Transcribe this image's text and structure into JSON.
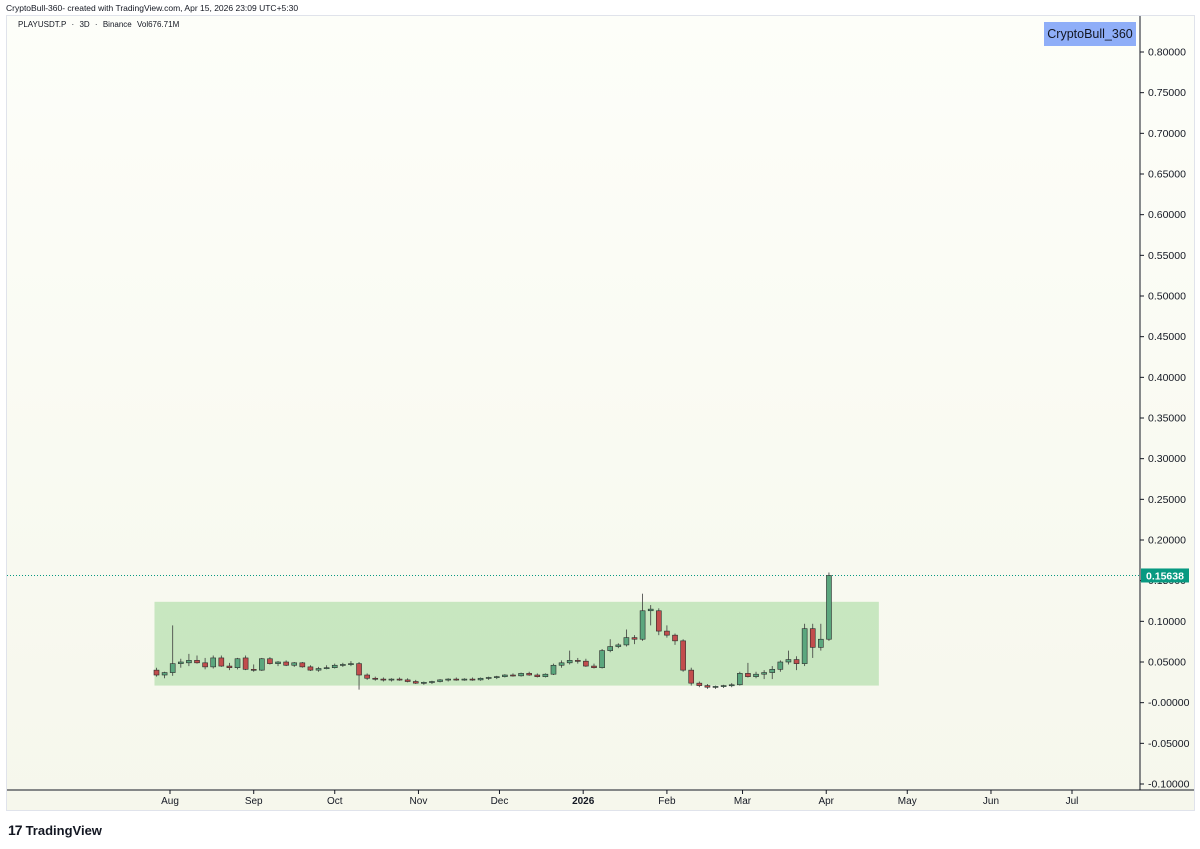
{
  "header": {
    "caption": "CryptoBull-360- created with TradingView.com, Apr 15, 2026 23:09 UTC+5:30"
  },
  "symbol": {
    "ticker": "PLAYUSDT.P",
    "timeframe": "3D",
    "exchange": "Binance",
    "volume": "Vol676.71M",
    "separator": "·"
  },
  "badge": {
    "text": "CryptoBull_360",
    "color": "#8faef8"
  },
  "footer": {
    "logo_glyph": "17",
    "brand": "TradingView"
  },
  "chart_data": {
    "type": "candlestick",
    "title": "",
    "y_axis": {
      "min": -0.1,
      "max": 0.8,
      "step": 0.05,
      "tick_labels": [
        "0.80000",
        "0.75000",
        "0.70000",
        "0.65000",
        "0.60000",
        "0.55000",
        "0.50000",
        "0.45000",
        "0.40000",
        "0.35000",
        "0.30000",
        "0.25000",
        "0.20000",
        "0.15000",
        "0.10000",
        "0.05000",
        "-0.00000",
        "-0.05000",
        "-0.10000"
      ]
    },
    "x_axis": {
      "labels": [
        {
          "text": "Aug",
          "date": "2025-08-01",
          "bold": false
        },
        {
          "text": "Sep",
          "date": "2025-09-01",
          "bold": false
        },
        {
          "text": "Oct",
          "date": "2025-10-01",
          "bold": false
        },
        {
          "text": "Nov",
          "date": "2025-11-01",
          "bold": false
        },
        {
          "text": "Dec",
          "date": "2025-12-01",
          "bold": false
        },
        {
          "text": "2026",
          "date": "2026-01-01",
          "bold": true
        },
        {
          "text": "Feb",
          "date": "2026-02-01",
          "bold": false
        },
        {
          "text": "Mar",
          "date": "2026-03-01",
          "bold": false
        },
        {
          "text": "Apr",
          "date": "2026-04-01",
          "bold": false
        },
        {
          "text": "May",
          "date": "2026-05-01",
          "bold": false
        },
        {
          "text": "Jun",
          "date": "2026-06-01",
          "bold": false
        },
        {
          "text": "Jul",
          "date": "2026-07-01",
          "bold": false
        }
      ]
    },
    "last_price": {
      "label": "0.15638",
      "value": 0.15638,
      "color": "#089981"
    },
    "range_box": {
      "start": "2025-07-27",
      "end": "2026-04-19",
      "top": 0.124,
      "bottom": 0.021,
      "color": "#b8e0b0"
    },
    "up_color": "#5ba77e",
    "down_color": "#c24d4d",
    "candles": [
      {
        "date": "2025-07-27",
        "o": 0.04,
        "h": 0.043,
        "l": 0.032,
        "c": 0.034
      },
      {
        "date": "2025-07-30",
        "o": 0.034,
        "h": 0.038,
        "l": 0.03,
        "c": 0.037
      },
      {
        "date": "2025-08-02",
        "o": 0.037,
        "h": 0.095,
        "l": 0.033,
        "c": 0.048
      },
      {
        "date": "2025-08-05",
        "o": 0.048,
        "h": 0.054,
        "l": 0.043,
        "c": 0.05
      },
      {
        "date": "2025-08-08",
        "o": 0.049,
        "h": 0.06,
        "l": 0.045,
        "c": 0.052
      },
      {
        "date": "2025-08-11",
        "o": 0.052,
        "h": 0.058,
        "l": 0.048,
        "c": 0.049
      },
      {
        "date": "2025-08-14",
        "o": 0.049,
        "h": 0.055,
        "l": 0.041,
        "c": 0.044
      },
      {
        "date": "2025-08-17",
        "o": 0.044,
        "h": 0.058,
        "l": 0.042,
        "c": 0.055
      },
      {
        "date": "2025-08-20",
        "o": 0.055,
        "h": 0.058,
        "l": 0.044,
        "c": 0.045
      },
      {
        "date": "2025-08-23",
        "o": 0.045,
        "h": 0.049,
        "l": 0.04,
        "c": 0.043
      },
      {
        "date": "2025-08-26",
        "o": 0.043,
        "h": 0.055,
        "l": 0.041,
        "c": 0.054
      },
      {
        "date": "2025-08-29",
        "o": 0.055,
        "h": 0.058,
        "l": 0.04,
        "c": 0.041
      },
      {
        "date": "2025-09-01",
        "o": 0.041,
        "h": 0.047,
        "l": 0.038,
        "c": 0.04
      },
      {
        "date": "2025-09-04",
        "o": 0.04,
        "h": 0.055,
        "l": 0.039,
        "c": 0.054
      },
      {
        "date": "2025-09-07",
        "o": 0.054,
        "h": 0.056,
        "l": 0.047,
        "c": 0.048
      },
      {
        "date": "2025-09-10",
        "o": 0.048,
        "h": 0.051,
        "l": 0.045,
        "c": 0.05
      },
      {
        "date": "2025-09-13",
        "o": 0.05,
        "h": 0.052,
        "l": 0.045,
        "c": 0.046
      },
      {
        "date": "2025-09-16",
        "o": 0.046,
        "h": 0.05,
        "l": 0.044,
        "c": 0.049
      },
      {
        "date": "2025-09-19",
        "o": 0.049,
        "h": 0.05,
        "l": 0.043,
        "c": 0.044
      },
      {
        "date": "2025-09-22",
        "o": 0.044,
        "h": 0.046,
        "l": 0.039,
        "c": 0.04
      },
      {
        "date": "2025-09-25",
        "o": 0.04,
        "h": 0.044,
        "l": 0.038,
        "c": 0.042
      },
      {
        "date": "2025-09-28",
        "o": 0.042,
        "h": 0.046,
        "l": 0.041,
        "c": 0.043
      },
      {
        "date": "2025-10-01",
        "o": 0.043,
        "h": 0.048,
        "l": 0.042,
        "c": 0.046
      },
      {
        "date": "2025-10-04",
        "o": 0.046,
        "h": 0.049,
        "l": 0.044,
        "c": 0.047
      },
      {
        "date": "2025-10-07",
        "o": 0.047,
        "h": 0.051,
        "l": 0.045,
        "c": 0.048
      },
      {
        "date": "2025-10-10",
        "o": 0.048,
        "h": 0.05,
        "l": 0.016,
        "c": 0.034
      },
      {
        "date": "2025-10-13",
        "o": 0.034,
        "h": 0.036,
        "l": 0.028,
        "c": 0.03
      },
      {
        "date": "2025-10-16",
        "o": 0.03,
        "h": 0.032,
        "l": 0.027,
        "c": 0.029
      },
      {
        "date": "2025-10-19",
        "o": 0.029,
        "h": 0.031,
        "l": 0.026,
        "c": 0.028
      },
      {
        "date": "2025-10-22",
        "o": 0.028,
        "h": 0.03,
        "l": 0.026,
        "c": 0.029
      },
      {
        "date": "2025-10-25",
        "o": 0.029,
        "h": 0.031,
        "l": 0.027,
        "c": 0.028
      },
      {
        "date": "2025-10-28",
        "o": 0.028,
        "h": 0.03,
        "l": 0.025,
        "c": 0.026
      },
      {
        "date": "2025-10-31",
        "o": 0.026,
        "h": 0.028,
        "l": 0.023,
        "c": 0.024
      },
      {
        "date": "2025-11-03",
        "o": 0.024,
        "h": 0.026,
        "l": 0.022,
        "c": 0.025
      },
      {
        "date": "2025-11-06",
        "o": 0.025,
        "h": 0.027,
        "l": 0.023,
        "c": 0.026
      },
      {
        "date": "2025-11-09",
        "o": 0.026,
        "h": 0.029,
        "l": 0.025,
        "c": 0.028
      },
      {
        "date": "2025-11-12",
        "o": 0.028,
        "h": 0.03,
        "l": 0.026,
        "c": 0.029
      },
      {
        "date": "2025-11-15",
        "o": 0.029,
        "h": 0.031,
        "l": 0.027,
        "c": 0.028
      },
      {
        "date": "2025-11-18",
        "o": 0.028,
        "h": 0.03,
        "l": 0.027,
        "c": 0.029
      },
      {
        "date": "2025-11-21",
        "o": 0.029,
        "h": 0.031,
        "l": 0.027,
        "c": 0.028
      },
      {
        "date": "2025-11-24",
        "o": 0.028,
        "h": 0.031,
        "l": 0.027,
        "c": 0.03
      },
      {
        "date": "2025-11-27",
        "o": 0.03,
        "h": 0.032,
        "l": 0.028,
        "c": 0.031
      },
      {
        "date": "2025-11-30",
        "o": 0.031,
        "h": 0.033,
        "l": 0.029,
        "c": 0.032
      },
      {
        "date": "2025-12-03",
        "o": 0.032,
        "h": 0.035,
        "l": 0.031,
        "c": 0.034
      },
      {
        "date": "2025-12-06",
        "o": 0.034,
        "h": 0.036,
        "l": 0.032,
        "c": 0.033
      },
      {
        "date": "2025-12-09",
        "o": 0.033,
        "h": 0.037,
        "l": 0.032,
        "c": 0.036
      },
      {
        "date": "2025-12-12",
        "o": 0.036,
        "h": 0.038,
        "l": 0.033,
        "c": 0.034
      },
      {
        "date": "2025-12-15",
        "o": 0.034,
        "h": 0.036,
        "l": 0.031,
        "c": 0.032
      },
      {
        "date": "2025-12-18",
        "o": 0.032,
        "h": 0.036,
        "l": 0.031,
        "c": 0.035
      },
      {
        "date": "2025-12-21",
        "o": 0.035,
        "h": 0.048,
        "l": 0.034,
        "c": 0.046
      },
      {
        "date": "2025-12-24",
        "o": 0.046,
        "h": 0.052,
        "l": 0.043,
        "c": 0.049
      },
      {
        "date": "2025-12-27",
        "o": 0.049,
        "h": 0.064,
        "l": 0.047,
        "c": 0.052
      },
      {
        "date": "2025-12-30",
        "o": 0.052,
        "h": 0.055,
        "l": 0.048,
        "c": 0.051
      },
      {
        "date": "2026-01-02",
        "o": 0.051,
        "h": 0.054,
        "l": 0.044,
        "c": 0.045
      },
      {
        "date": "2026-01-05",
        "o": 0.045,
        "h": 0.048,
        "l": 0.042,
        "c": 0.043
      },
      {
        "date": "2026-01-08",
        "o": 0.043,
        "h": 0.066,
        "l": 0.042,
        "c": 0.064
      },
      {
        "date": "2026-01-11",
        "o": 0.064,
        "h": 0.078,
        "l": 0.062,
        "c": 0.069
      },
      {
        "date": "2026-01-14",
        "o": 0.069,
        "h": 0.073,
        "l": 0.067,
        "c": 0.071
      },
      {
        "date": "2026-01-17",
        "o": 0.071,
        "h": 0.09,
        "l": 0.069,
        "c": 0.08
      },
      {
        "date": "2026-01-20",
        "o": 0.08,
        "h": 0.083,
        "l": 0.072,
        "c": 0.078
      },
      {
        "date": "2026-01-23",
        "o": 0.078,
        "h": 0.134,
        "l": 0.076,
        "c": 0.113
      },
      {
        "date": "2026-01-26",
        "o": 0.113,
        "h": 0.12,
        "l": 0.095,
        "c": 0.115
      },
      {
        "date": "2026-01-29",
        "o": 0.113,
        "h": 0.116,
        "l": 0.083,
        "c": 0.088
      },
      {
        "date": "2026-02-01",
        "o": 0.088,
        "h": 0.095,
        "l": 0.08,
        "c": 0.083
      },
      {
        "date": "2026-02-04",
        "o": 0.083,
        "h": 0.085,
        "l": 0.071,
        "c": 0.076
      },
      {
        "date": "2026-02-07",
        "o": 0.076,
        "h": 0.078,
        "l": 0.038,
        "c": 0.04
      },
      {
        "date": "2026-02-10",
        "o": 0.04,
        "h": 0.043,
        "l": 0.021,
        "c": 0.024
      },
      {
        "date": "2026-02-13",
        "o": 0.024,
        "h": 0.026,
        "l": 0.019,
        "c": 0.021
      },
      {
        "date": "2026-02-16",
        "o": 0.021,
        "h": 0.023,
        "l": 0.017,
        "c": 0.019
      },
      {
        "date": "2026-02-19",
        "o": 0.019,
        "h": 0.021,
        "l": 0.017,
        "c": 0.02
      },
      {
        "date": "2026-02-22",
        "o": 0.02,
        "h": 0.022,
        "l": 0.018,
        "c": 0.021
      },
      {
        "date": "2026-02-25",
        "o": 0.021,
        "h": 0.024,
        "l": 0.019,
        "c": 0.022
      },
      {
        "date": "2026-02-28",
        "o": 0.022,
        "h": 0.038,
        "l": 0.021,
        "c": 0.036
      },
      {
        "date": "2026-03-03",
        "o": 0.036,
        "h": 0.049,
        "l": 0.031,
        "c": 0.032
      },
      {
        "date": "2026-03-06",
        "o": 0.032,
        "h": 0.038,
        "l": 0.03,
        "c": 0.035
      },
      {
        "date": "2026-03-09",
        "o": 0.035,
        "h": 0.04,
        "l": 0.029,
        "c": 0.037
      },
      {
        "date": "2026-03-12",
        "o": 0.037,
        "h": 0.045,
        "l": 0.029,
        "c": 0.041
      },
      {
        "date": "2026-03-15",
        "o": 0.041,
        "h": 0.052,
        "l": 0.038,
        "c": 0.05
      },
      {
        "date": "2026-03-18",
        "o": 0.05,
        "h": 0.064,
        "l": 0.047,
        "c": 0.053
      },
      {
        "date": "2026-03-21",
        "o": 0.053,
        "h": 0.057,
        "l": 0.04,
        "c": 0.048
      },
      {
        "date": "2026-03-24",
        "o": 0.048,
        "h": 0.097,
        "l": 0.045,
        "c": 0.091
      },
      {
        "date": "2026-03-27",
        "o": 0.091,
        "h": 0.097,
        "l": 0.055,
        "c": 0.068
      },
      {
        "date": "2026-03-30",
        "o": 0.068,
        "h": 0.097,
        "l": 0.064,
        "c": 0.078
      },
      {
        "date": "2026-04-02",
        "o": 0.078,
        "h": 0.16,
        "l": 0.076,
        "c": 0.15638
      }
    ]
  }
}
